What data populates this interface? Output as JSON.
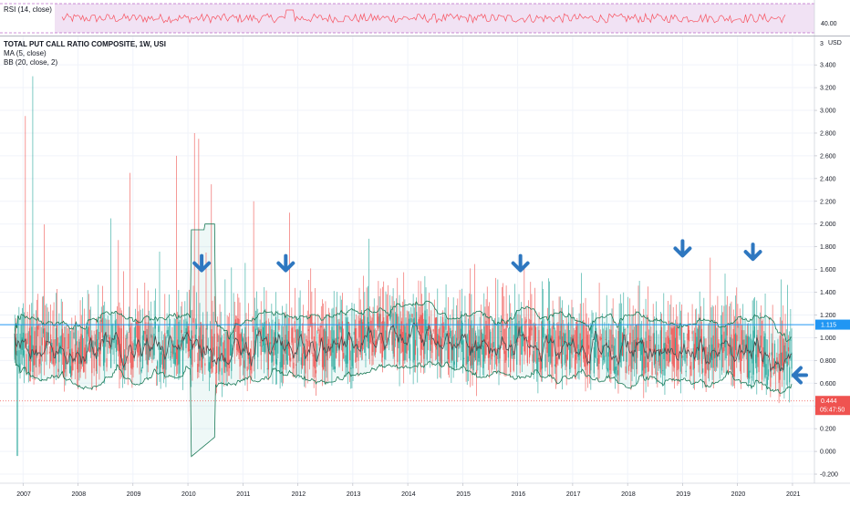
{
  "rsi": {
    "title": "RSI (14, close)",
    "level_label": "40.00",
    "line_color": "#f7525f",
    "band_color": "#e1bee7"
  },
  "main": {
    "title": "TOTAL PUT CALL RATIO COMPOSITE, 1W, USI",
    "indicators": [
      "MA (5, close)",
      "BB (20, close, 2)"
    ],
    "currency": "USD",
    "top_label": "3"
  },
  "price_badges": {
    "hline_value": "1.115",
    "hline_color": "#2196f3",
    "last_value": "0.444",
    "countdown": "05:47:50",
    "last_color": "#ef5350"
  },
  "arrows": {
    "color": "#2e77c0",
    "count": 6
  },
  "chart_data": {
    "type": "candlestick",
    "title": "TOTAL PUT CALL RATIO COMPOSITE, 1W, USI",
    "x_tick_labels": [
      "2007",
      "2008",
      "2009",
      "2010",
      "2011",
      "2012",
      "2013",
      "2014",
      "2015",
      "2016",
      "2017",
      "2018",
      "2019",
      "2020",
      "2021"
    ],
    "y_tick_labels": [
      "-0.200",
      "0.000",
      "0.200",
      "0.400",
      "0.600",
      "0.800",
      "1.000",
      "1.200",
      "1.400",
      "1.600",
      "1.800",
      "2.000",
      "2.200",
      "2.400",
      "2.600",
      "2.800",
      "3.000",
      "3.200",
      "3.400"
    ],
    "y_ticks": [
      -0.2,
      0,
      0.2,
      0.4,
      0.6,
      0.8,
      1.0,
      1.2,
      1.4,
      1.6,
      1.8,
      2.0,
      2.2,
      2.4,
      2.6,
      2.8,
      3.0,
      3.2,
      3.4
    ],
    "ylim": [
      -0.28,
      3.65
    ],
    "xlim": [
      2006.78,
      2021.2
    ],
    "up_color": "#26a69a",
    "down_color": "#ef5350",
    "ma_color": "#4a4a4a",
    "bb_color": "#1b7a57",
    "grid": true,
    "horizontal_line": 1.115,
    "last_value": 0.444,
    "spikes": [
      {
        "x": 2007.05,
        "high": 2.95
      },
      {
        "x": 2007.18,
        "high": 3.3
      },
      {
        "x": 2010.12,
        "high": 2.8
      },
      {
        "x": 2010.2,
        "high": 2.75
      },
      {
        "x": 2009.8,
        "high": 2.6
      },
      {
        "x": 2008.95,
        "high": 2.45
      },
      {
        "x": 2008.6,
        "high": 2.05
      },
      {
        "x": 2011.2,
        "high": 2.2
      },
      {
        "x": 2011.85,
        "high": 2.1
      },
      {
        "x": 2010.42,
        "high": 2.35
      }
    ],
    "arrows_down": [
      {
        "x": 2010.25,
        "y": 1.72
      },
      {
        "x": 2011.78,
        "y": 1.72
      },
      {
        "x": 2016.05,
        "y": 1.72
      },
      {
        "x": 2019.0,
        "y": 1.85
      },
      {
        "x": 2020.28,
        "y": 1.82
      }
    ],
    "arrow_left": {
      "x": 2021.32,
      "y": 0.67
    }
  }
}
